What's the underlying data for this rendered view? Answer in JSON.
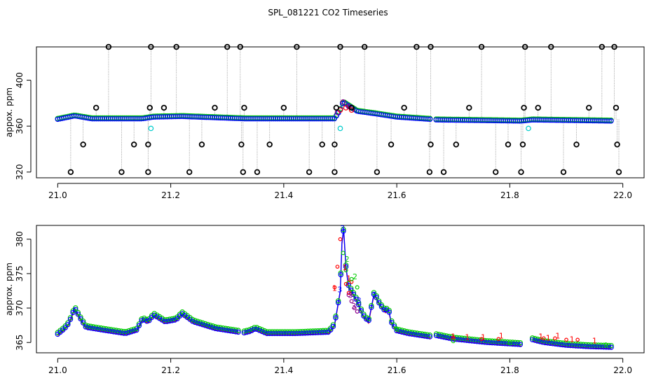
{
  "title": "SPL_081221  CO2 Timeseries",
  "colors": {
    "red": "#ff0000",
    "green": "#00cc00",
    "blue": "#0000ff",
    "cyan": "#00cccc",
    "purple": "#8b008b",
    "black": "#000000"
  },
  "chart_data": [
    {
      "type": "scatter",
      "xlabel": "",
      "ylabel": "appox. ppm",
      "xlim": [
        21.0,
        22.0
      ],
      "ylim": [
        315,
        429
      ],
      "xticks": [
        "21.0",
        "21.2",
        "21.4",
        "21.6",
        "21.8",
        "22.0"
      ],
      "yticks": [
        "320",
        "360",
        "400"
      ],
      "grid": false,
      "baseline_ppm": [
        [
          21.0,
          366
        ],
        [
          21.03,
          369
        ],
        [
          21.06,
          366.5
        ],
        [
          21.15,
          366.5
        ],
        [
          21.17,
          368
        ],
        [
          21.22,
          368.5
        ],
        [
          21.33,
          366.5
        ],
        [
          21.49,
          366.5
        ],
        [
          21.5,
          374
        ],
        [
          21.505,
          381
        ],
        [
          21.53,
          373
        ],
        [
          21.56,
          371
        ],
        [
          21.6,
          368
        ],
        [
          21.66,
          366
        ],
        [
          21.67,
          365.5
        ],
        [
          21.82,
          364.5
        ],
        [
          21.84,
          365.5
        ],
        [
          21.98,
          364.5
        ]
      ],
      "peak_points": [
        [
          21.495,
          372
        ],
        [
          21.5,
          374
        ],
        [
          21.505,
          381
        ],
        [
          21.51,
          376
        ],
        [
          21.515,
          377
        ],
        [
          21.52,
          374
        ]
      ],
      "cyan_outliers": [
        [
          21.165,
          358
        ],
        [
          21.5,
          358
        ],
        [
          21.833,
          358
        ]
      ],
      "outliers": [
        [
          21.023,
          320
        ],
        [
          21.045,
          344
        ],
        [
          21.068,
          376
        ],
        [
          21.09,
          429
        ],
        [
          21.113,
          320
        ],
        [
          21.135,
          344
        ],
        [
          21.16,
          320
        ],
        [
          21.16,
          344
        ],
        [
          21.163,
          376
        ],
        [
          21.165,
          429
        ],
        [
          21.188,
          376
        ],
        [
          21.21,
          429
        ],
        [
          21.233,
          320
        ],
        [
          21.255,
          344
        ],
        [
          21.278,
          376
        ],
        [
          21.3,
          429
        ],
        [
          21.323,
          429
        ],
        [
          21.325,
          344
        ],
        [
          21.328,
          320
        ],
        [
          21.33,
          376
        ],
        [
          21.353,
          320
        ],
        [
          21.375,
          344
        ],
        [
          21.4,
          376
        ],
        [
          21.423,
          429
        ],
        [
          21.445,
          320
        ],
        [
          21.468,
          344
        ],
        [
          21.49,
          320
        ],
        [
          21.49,
          344
        ],
        [
          21.493,
          376
        ],
        [
          21.5,
          429
        ],
        [
          21.52,
          376
        ],
        [
          21.543,
          429
        ],
        [
          21.565,
          320
        ],
        [
          21.59,
          344
        ],
        [
          21.613,
          376
        ],
        [
          21.635,
          429
        ],
        [
          21.658,
          320
        ],
        [
          21.66,
          344
        ],
        [
          21.66,
          429
        ],
        [
          21.683,
          320
        ],
        [
          21.705,
          344
        ],
        [
          21.728,
          376
        ],
        [
          21.75,
          429
        ],
        [
          21.775,
          320
        ],
        [
          21.797,
          344
        ],
        [
          21.82,
          320
        ],
        [
          21.823,
          344
        ],
        [
          21.825,
          376
        ],
        [
          21.827,
          429
        ],
        [
          21.85,
          376
        ],
        [
          21.873,
          429
        ],
        [
          21.895,
          320
        ],
        [
          21.918,
          344
        ],
        [
          21.94,
          376
        ],
        [
          21.963,
          429
        ],
        [
          21.985,
          429
        ],
        [
          21.988,
          376
        ],
        [
          21.99,
          344
        ],
        [
          21.993,
          320
        ]
      ]
    },
    {
      "type": "line",
      "xlabel": "",
      "ylabel": "approx. ppm",
      "xlim": [
        21.0,
        22.0
      ],
      "ylim": [
        363.5,
        382.0
      ],
      "xticks": [
        "21.0",
        "21.2",
        "21.4",
        "21.6",
        "21.8",
        "22.0"
      ],
      "yticks": [
        "365",
        "370",
        "375",
        "380"
      ],
      "grid": false,
      "series": [
        {
          "name": "",
          "points": [
            [
              21.0,
              366.2
            ],
            [
              21.012,
              367.0
            ],
            [
              21.02,
              367.8
            ],
            [
              21.03,
              370.0
            ],
            [
              21.04,
              368.5
            ],
            [
              21.05,
              367.2
            ],
            [
              21.08,
              366.8
            ],
            [
              21.12,
              366.3
            ],
            [
              21.14,
              366.8
            ],
            [
              21.15,
              368.4
            ],
            [
              21.16,
              368.0
            ],
            [
              21.17,
              369.0
            ],
            [
              21.19,
              368.0
            ],
            [
              21.21,
              368.3
            ],
            [
              21.22,
              369.2
            ],
            [
              21.24,
              368.0
            ],
            [
              21.28,
              367.0
            ],
            [
              21.32,
              366.5
            ]
          ]
        },
        {
          "name": "",
          "points": [
            [
              21.33,
              366.4
            ],
            [
              21.34,
              366.6
            ],
            [
              21.35,
              367.0
            ],
            [
              21.37,
              366.3
            ],
            [
              21.42,
              366.3
            ],
            [
              21.48,
              366.5
            ],
            [
              21.49,
              367.6
            ],
            [
              21.5,
              372.5
            ],
            [
              21.503,
              379.5
            ],
            [
              21.506,
              381.5
            ],
            [
              21.51,
              376.0
            ],
            [
              21.515,
              373.0
            ],
            [
              21.52,
              372.5
            ],
            [
              21.53,
              371.0
            ],
            [
              21.54,
              369.0
            ],
            [
              21.55,
              368.0
            ],
            [
              21.56,
              372.2
            ],
            [
              21.57,
              370.5
            ],
            [
              21.58,
              369.5
            ],
            [
              21.585,
              370.0
            ],
            [
              21.59,
              368.0
            ],
            [
              21.6,
              366.7
            ],
            [
              21.62,
              366.3
            ],
            [
              21.66,
              365.8
            ]
          ]
        },
        {
          "name": "",
          "points": [
            [
              21.67,
              366.0
            ],
            [
              21.7,
              365.5
            ],
            [
              21.76,
              365.0
            ],
            [
              21.82,
              364.7
            ]
          ]
        },
        {
          "name": "",
          "points": [
            [
              21.84,
              365.4
            ],
            [
              21.86,
              365.0
            ],
            [
              21.9,
              364.6
            ],
            [
              21.94,
              364.4
            ],
            [
              21.98,
              364.3
            ]
          ]
        }
      ],
      "red_points": [
        [
          21.49,
          373.0
        ],
        [
          21.495,
          376.0
        ],
        [
          21.5,
          380.0
        ],
        [
          21.51,
          373.5
        ],
        [
          21.515,
          372.2
        ],
        [
          21.52,
          373.8
        ],
        [
          21.7,
          365.7
        ],
        [
          21.75,
          365.5
        ],
        [
          21.78,
          365.5
        ],
        [
          21.86,
          365.6
        ],
        [
          21.88,
          365.6
        ],
        [
          21.9,
          365.4
        ],
        [
          21.92,
          365.4
        ]
      ],
      "green_points": [
        [
          21.505,
          378.0
        ],
        [
          21.51,
          375.5
        ],
        [
          21.52,
          374.2
        ],
        [
          21.53,
          373.0
        ],
        [
          21.6,
          366.9
        ],
        [
          21.7,
          365.2
        ],
        [
          21.8,
          364.9
        ],
        [
          21.97,
          364.7
        ]
      ],
      "purple_points": [
        [
          21.515,
          371.9
        ],
        [
          21.52,
          371.0
        ],
        [
          21.525,
          370.0
        ],
        [
          21.53,
          369.5
        ]
      ],
      "label_glyphs": [
        {
          "x": 21.504,
          "y": 381.5,
          "text": "3",
          "color": "blue"
        },
        {
          "x": 21.499,
          "y": 372.6,
          "text": "3",
          "color": "blue"
        },
        {
          "x": 21.49,
          "y": 372.8,
          "text": "1",
          "color": "red"
        },
        {
          "x": 21.508,
          "y": 375.8,
          "text": "1",
          "color": "red"
        },
        {
          "x": 21.515,
          "y": 374.2,
          "text": "1",
          "color": "red"
        },
        {
          "x": 21.512,
          "y": 377.0,
          "text": "2",
          "color": "green"
        },
        {
          "x": 21.526,
          "y": 374.5,
          "text": "2",
          "color": "green"
        },
        {
          "x": 21.518,
          "y": 371.8,
          "text": "3",
          "color": "purple"
        },
        {
          "x": 21.524,
          "y": 370.2,
          "text": "3",
          "color": "purple"
        },
        {
          "x": 21.533,
          "y": 371.0,
          "text": "3",
          "color": "blue"
        },
        {
          "x": 21.7,
          "y": 365.8,
          "text": "1",
          "color": "red"
        },
        {
          "x": 21.725,
          "y": 365.7,
          "text": "1",
          "color": "red"
        },
        {
          "x": 21.753,
          "y": 365.7,
          "text": "1",
          "color": "red"
        },
        {
          "x": 21.785,
          "y": 365.9,
          "text": "1",
          "color": "red"
        },
        {
          "x": 21.855,
          "y": 365.8,
          "text": "1",
          "color": "red"
        },
        {
          "x": 21.868,
          "y": 365.6,
          "text": "1",
          "color": "red"
        },
        {
          "x": 21.885,
          "y": 365.9,
          "text": "1",
          "color": "red"
        },
        {
          "x": 21.91,
          "y": 365.4,
          "text": "1",
          "color": "red"
        },
        {
          "x": 21.95,
          "y": 365.2,
          "text": "1",
          "color": "red"
        }
      ]
    }
  ]
}
